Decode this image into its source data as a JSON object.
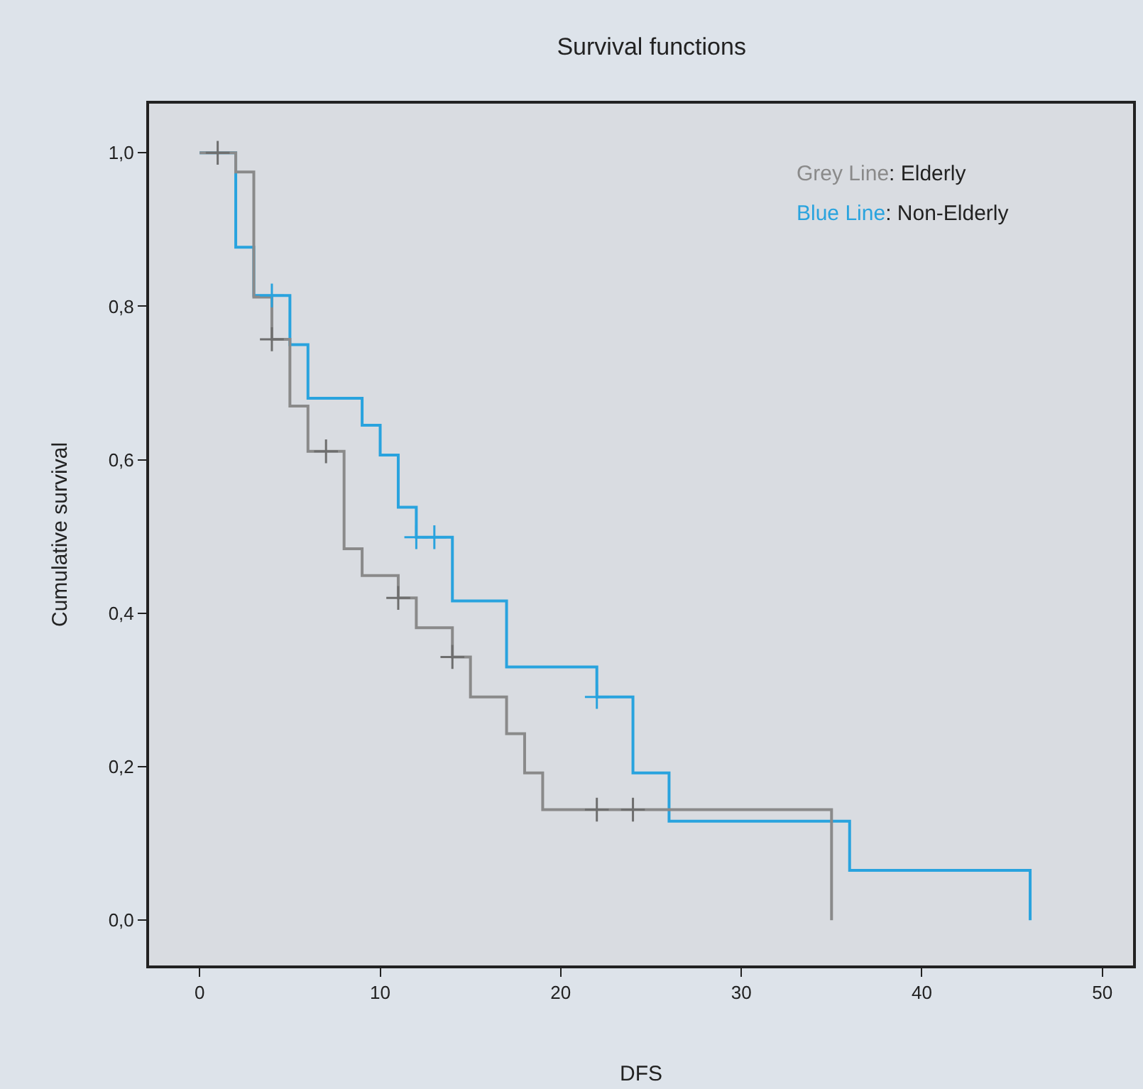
{
  "chart_data": {
    "type": "step",
    "title": "Survival functions",
    "xlabel": "DFS",
    "ylabel": "Cumulative survival",
    "series": [
      {
        "color": "#8a8a8a",
        "x": [
          0,
          2,
          3,
          4,
          5,
          6,
          8,
          9,
          11,
          12,
          14,
          15,
          17,
          18,
          19,
          35
        ],
        "values": [
          1.0,
          0.975,
          0.812,
          0.757,
          0.67,
          0.611,
          0.484,
          0.449,
          0.42,
          0.381,
          0.343,
          0.291,
          0.243,
          0.192,
          0.144,
          0.0
        ]
      },
      {
        "color": "#29a3de",
        "x": [
          0,
          2,
          3,
          5,
          6,
          9,
          10,
          11,
          12,
          14,
          17,
          22,
          24,
          26,
          36,
          46
        ],
        "values": [
          1.0,
          0.877,
          0.814,
          0.75,
          0.68,
          0.645,
          0.606,
          0.538,
          0.499,
          0.416,
          0.33,
          0.291,
          0.192,
          0.129,
          0.065,
          0.0
        ]
      },
      {
        "type": "scatter",
        "marker": "cross",
        "color": "#6e6e6e",
        "x": [
          1,
          4,
          7,
          11,
          14,
          22,
          24
        ],
        "values": [
          1.0,
          0.757,
          0.611,
          0.42,
          0.343,
          0.144,
          0.144
        ]
      },
      {
        "type": "scatter",
        "marker": "cross",
        "color": "#29a3de",
        "x": [
          4,
          12,
          13,
          22
        ],
        "values": [
          0.814,
          0.499,
          0.499,
          0.291
        ]
      }
    ],
    "annotations": [
      "Grey Line: Elderly",
      "Blue Line: Non-Elderly"
    ],
    "xlim": [
      -2.8,
      51.7
    ],
    "xticks": [
      0,
      10,
      20,
      30,
      40,
      50
    ],
    "ylim": [
      -0.059,
      1.064
    ],
    "yticks": [
      {
        "value": 0,
        "label": "0,0"
      },
      {
        "value": 0.2,
        "label": "0,2"
      },
      {
        "value": 0.4,
        "label": "0,4"
      },
      {
        "value": 0.6,
        "label": "0,6"
      },
      {
        "value": 0.8,
        "label": "0,8"
      },
      {
        "value": 1.0,
        "label": "1,0"
      }
    ],
    "grid": false
  }
}
